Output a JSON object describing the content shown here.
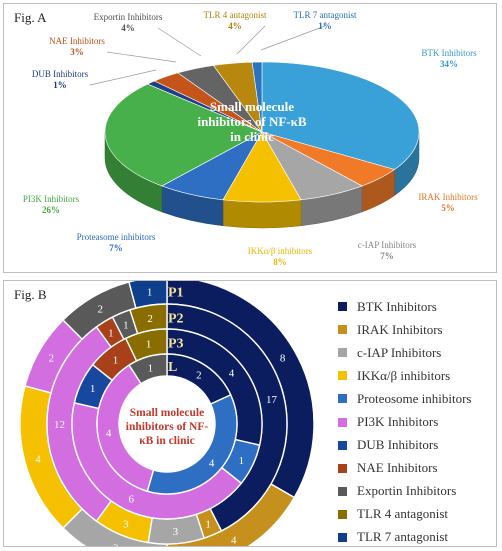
{
  "fig_a": {
    "label": "Fig. A",
    "center_title_lines": [
      "Small molecule",
      "inhibitors of NF-κB",
      "in clinic"
    ]
  },
  "fig_b": {
    "label": "Fig. B",
    "center_title_lines": [
      "Small molecule",
      "inhibitors of NF-",
      "κB in clinic"
    ],
    "ring_labels": [
      "P1",
      "P2",
      "P3",
      "L"
    ]
  },
  "chart_data": [
    {
      "type": "pie",
      "title": "Small molecule inhibitors of NF-κB in clinic",
      "three_d": true,
      "slices": [
        {
          "label": "BTK Inhibitors",
          "percent_label": "34%",
          "value": 34,
          "color": "#3aa0d8"
        },
        {
          "label": "IRAK Inhibitors",
          "percent_label": "5%",
          "value": 5,
          "color": "#f07a28"
        },
        {
          "label": "c-IAP Inhibitors",
          "percent_label": "7%",
          "value": 7,
          "color": "#a6a6a6"
        },
        {
          "label": "IKKα/β inhibitors",
          "percent_label": "8%",
          "value": 8,
          "color": "#f5c000"
        },
        {
          "label": "Proteasome inhibitors",
          "percent_label": "7%",
          "value": 7,
          "color": "#2e6fc4"
        },
        {
          "label": "PI3K Inhibitors",
          "percent_label": "26%",
          "value": 26,
          "color": "#47b04b"
        },
        {
          "label": "DUB Inhibitors",
          "percent_label": "1%",
          "value": 1,
          "color": "#1f3f86"
        },
        {
          "label": "NAE Inhibitors",
          "percent_label": "3%",
          "value": 3,
          "color": "#c5541a"
        },
        {
          "label": "Exportin Inhibitors",
          "percent_label": "4%",
          "value": 4,
          "color": "#646464"
        },
        {
          "label": "TLR 4 antagonist",
          "percent_label": "4%",
          "value": 4,
          "color": "#b8870d"
        },
        {
          "label": "TLR 7 antagonist",
          "percent_label": "1%",
          "value": 1,
          "color": "#2a73c0"
        }
      ]
    },
    {
      "type": "pie",
      "subtype": "multi-level donut",
      "title": "Small molecule inhibitors of NF-κB in clinic",
      "legend": [
        {
          "label": "BTK Inhibitors",
          "color": "#0b1d5e"
        },
        {
          "label": "IRAK Inhibitors",
          "color": "#c5901b"
        },
        {
          "label": "c-IAP Inhibitors",
          "color": "#a6a6a6"
        },
        {
          "label": "IKKα/β inhibitors",
          "color": "#f5c000"
        },
        {
          "label": "Proteosome inhibitors",
          "color": "#2e6fc4"
        },
        {
          "label": "PI3K Inhibitors",
          "color": "#d36ee0"
        },
        {
          "label": "DUB Inhibitors",
          "color": "#17479e"
        },
        {
          "label": "NAE Inhibitors",
          "color": "#a8401a"
        },
        {
          "label": "Exportin Inhibitors",
          "color": "#595959"
        },
        {
          "label": "TLR 4 antagonist",
          "color": "#8a6d00"
        },
        {
          "label": "TLR 7 antagonist",
          "color": "#0f3e8c"
        }
      ],
      "rings": [
        {
          "name": "P1",
          "segments": [
            {
              "category": "BTK Inhibitors",
              "value": 8
            },
            {
              "category": "IRAK Inhibitors",
              "value": 4
            },
            {
              "category": "c-IAP Inhibitors",
              "value": 3
            },
            {
              "category": "IKKα/β inhibitors",
              "value": 4
            },
            {
              "category": "PI3K Inhibitors",
              "value": 2
            },
            {
              "category": "Exportin Inhibitors",
              "value": 2
            },
            {
              "category": "TLR 7 antagonist",
              "value": 1
            }
          ]
        },
        {
          "name": "P2",
          "segments": [
            {
              "category": "BTK Inhibitors",
              "value": 17
            },
            {
              "category": "IRAK Inhibitors",
              "value": 1
            },
            {
              "category": "c-IAP Inhibitors",
              "value": 3
            },
            {
              "category": "IKKα/β inhibitors",
              "value": 3
            },
            {
              "category": "PI3K Inhibitors",
              "value": 12
            },
            {
              "category": "NAE Inhibitors",
              "value": 1
            },
            {
              "category": "Exportin Inhibitors",
              "value": 1
            },
            {
              "category": "TLR 4 antagonist",
              "value": 2
            }
          ]
        },
        {
          "name": "P3",
          "segments": [
            {
              "category": "BTK Inhibitors",
              "value": 4
            },
            {
              "category": "Proteosome inhibitors",
              "value": 1
            },
            {
              "category": "PI3K Inhibitors",
              "value": 6
            },
            {
              "category": "DUB Inhibitors",
              "value": 1
            },
            {
              "category": "NAE Inhibitors",
              "value": 1
            },
            {
              "category": "TLR 4 antagonist",
              "value": 1
            }
          ]
        },
        {
          "name": "L",
          "segments": [
            {
              "category": "BTK Inhibitors",
              "value": 2
            },
            {
              "category": "Proteosome inhibitors",
              "value": 4
            },
            {
              "category": "PI3K Inhibitors",
              "value": 4
            },
            {
              "category": "Exportin Inhibitors",
              "value": 1
            }
          ]
        }
      ]
    }
  ]
}
